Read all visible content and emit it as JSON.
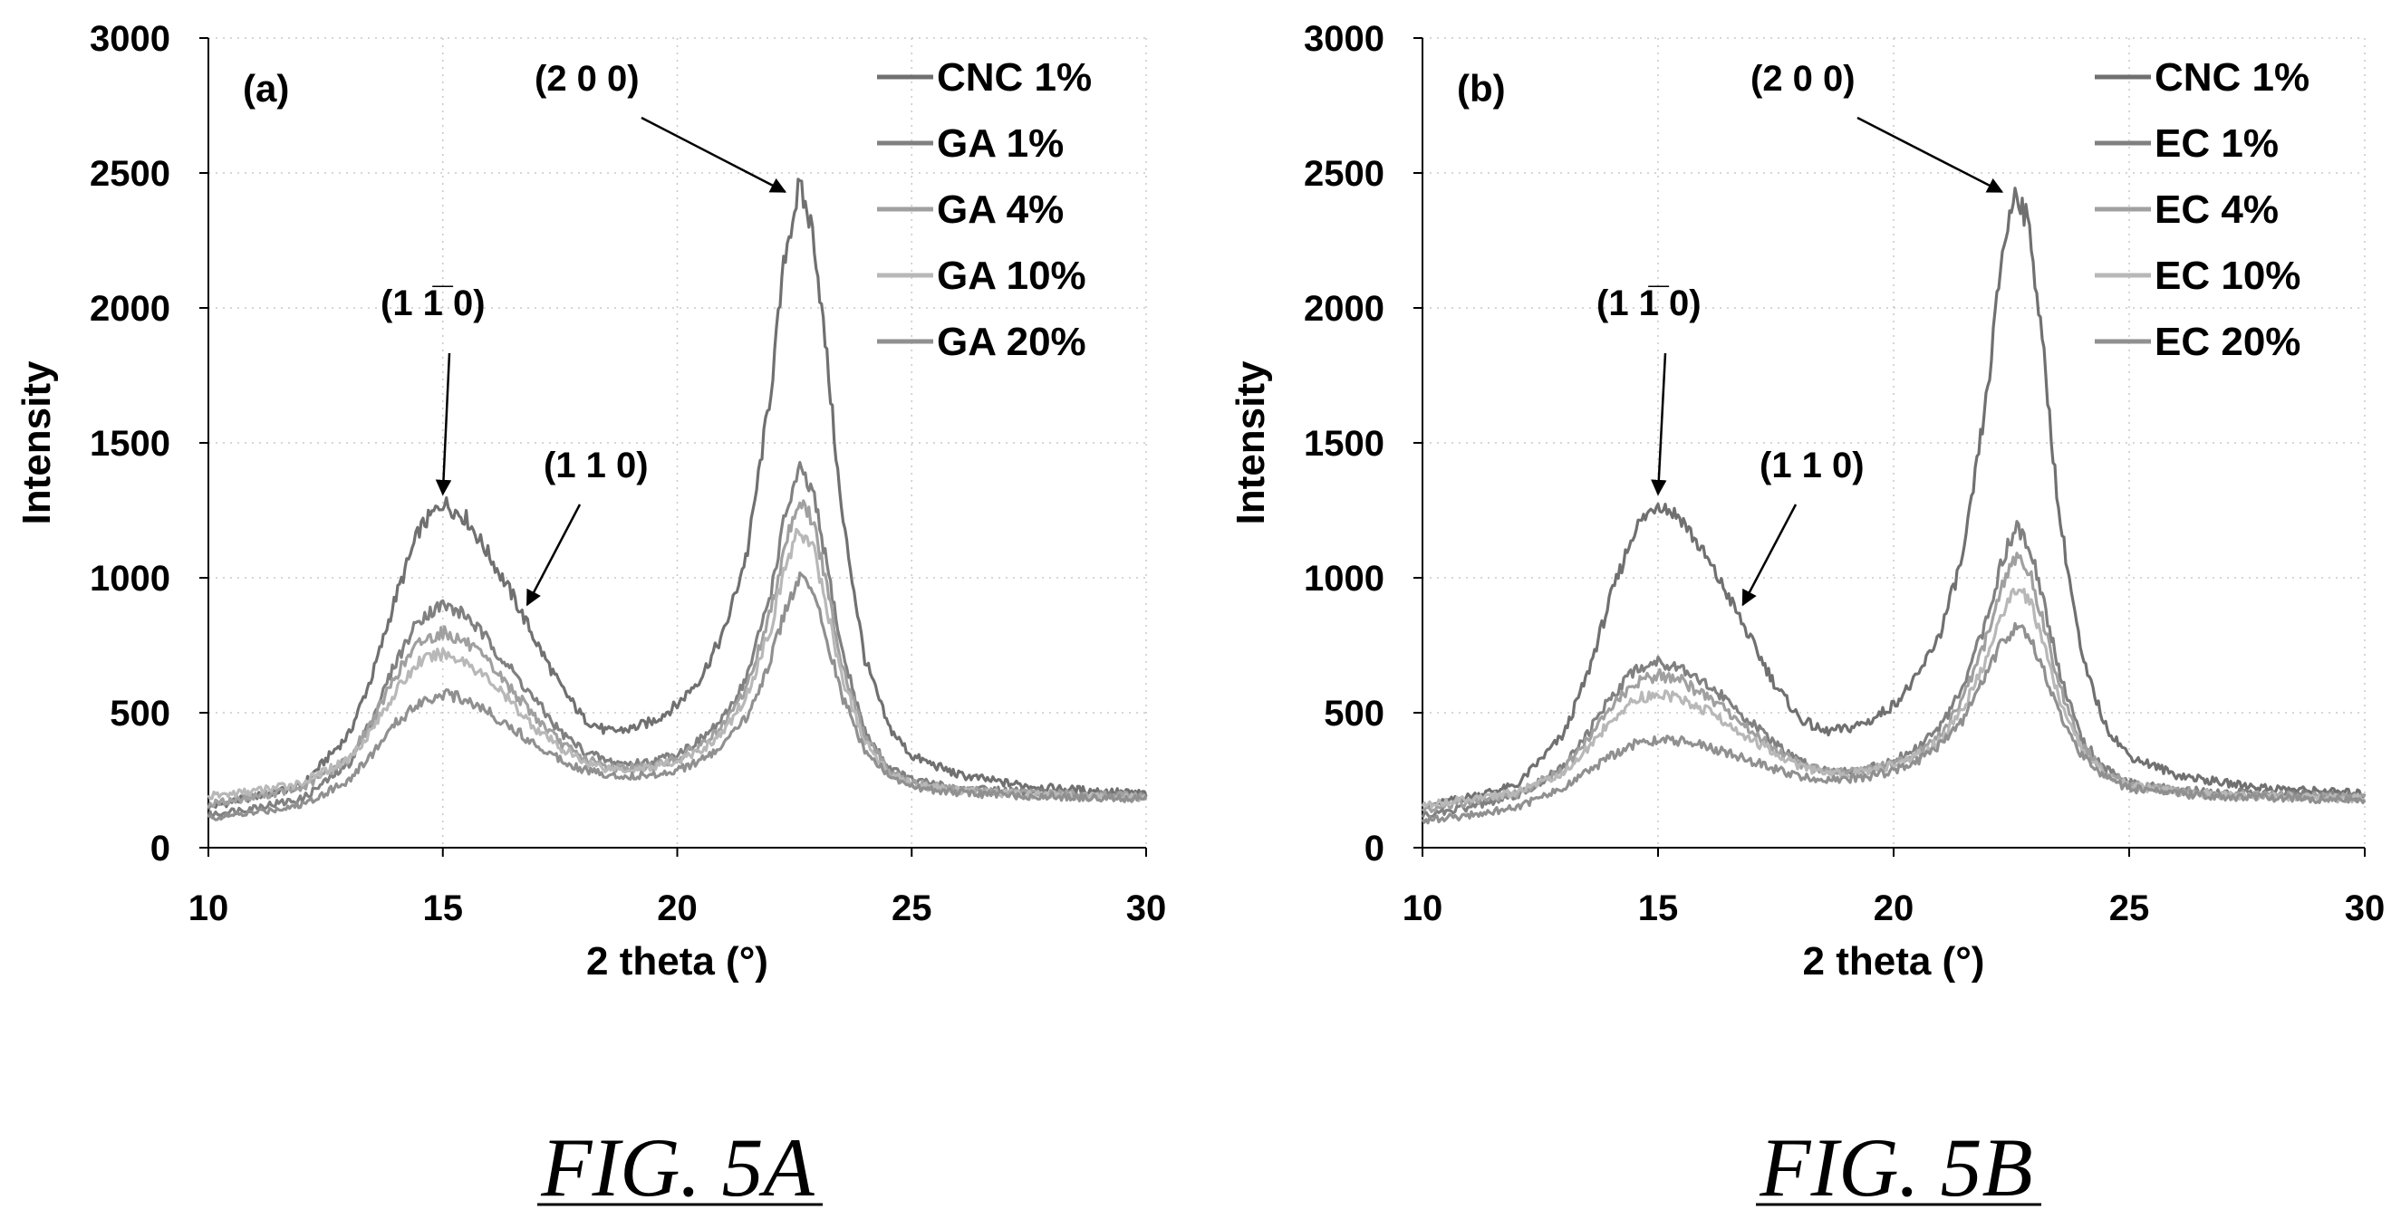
{
  "chart_data": [
    {
      "type": "line",
      "panel_label": "(a)",
      "caption": "FIG. 5A",
      "xlabel": "2 theta (°)",
      "ylabel": "Intensity",
      "xlim": [
        10,
        30
      ],
      "ylim": [
        0,
        3000
      ],
      "xticks": [
        10,
        15,
        20,
        25,
        30
      ],
      "yticks": [
        0,
        500,
        1000,
        1500,
        2000,
        2500,
        3000
      ],
      "grid": true,
      "legend_position": "top-right",
      "x": [
        10,
        11,
        12,
        13,
        13.5,
        14,
        14.5,
        15,
        15.5,
        16,
        16.5,
        17,
        17.5,
        18,
        18.5,
        19,
        19.5,
        20,
        20.5,
        21,
        21.5,
        22,
        22.3,
        22.6,
        22.9,
        23.2,
        23.5,
        24,
        24.5,
        25,
        26,
        27,
        28,
        29,
        30
      ],
      "series": [
        {
          "name": "CNC 1%",
          "color": "#707070",
          "values": [
            150,
            190,
            230,
            420,
            640,
            930,
            1180,
            1280,
            1220,
            1080,
            930,
            760,
            600,
            480,
            430,
            440,
            470,
            530,
            630,
            800,
            1100,
            1700,
            2200,
            2450,
            2280,
            1800,
            1250,
            700,
            450,
            340,
            270,
            240,
            220,
            210,
            200
          ]
        },
        {
          "name": "GA 1%",
          "color": "#808080",
          "values": [
            120,
            150,
            180,
            310,
            480,
            690,
            850,
            900,
            860,
            760,
            650,
            540,
            430,
            360,
            320,
            310,
            320,
            350,
            400,
            480,
            640,
            950,
            1230,
            1400,
            1310,
            1040,
            740,
            430,
            300,
            250,
            220,
            210,
            200,
            195,
            190
          ]
        },
        {
          "name": "GA 4%",
          "color": "#a0a0a0",
          "values": [
            160,
            190,
            220,
            330,
            470,
            640,
            760,
            800,
            760,
            680,
            580,
            480,
            390,
            330,
            300,
            295,
            305,
            330,
            380,
            450,
            600,
            880,
            1130,
            1290,
            1210,
            960,
            690,
            410,
            290,
            240,
            215,
            205,
            200,
            195,
            190
          ]
        },
        {
          "name": "GA 10%",
          "color": "#b8b8b8",
          "values": [
            190,
            210,
            240,
            330,
            440,
            580,
            690,
            720,
            690,
            620,
            530,
            440,
            370,
            320,
            295,
            290,
            300,
            320,
            360,
            430,
            570,
            820,
            1040,
            1180,
            1110,
            880,
            640,
            390,
            280,
            235,
            210,
            200,
            195,
            190,
            185
          ]
        },
        {
          "name": "GA 20%",
          "color": "#909090",
          "values": [
            110,
            130,
            160,
            250,
            350,
            460,
            540,
            570,
            550,
            500,
            440,
            380,
            330,
            290,
            270,
            265,
            270,
            290,
            320,
            380,
            490,
            700,
            880,
            1000,
            950,
            770,
            570,
            360,
            265,
            225,
            205,
            195,
            190,
            185,
            180
          ]
        }
      ],
      "annotations": [
        {
          "text": "(2 0 0)",
          "points_to_x": 22.3,
          "points_to_y": 2430
        },
        {
          "text": "(1 1̅ 0)",
          "points_to_x": 15,
          "points_to_y": 1310
        },
        {
          "text": "(1 1 0)",
          "points_to_x": 16.8,
          "points_to_y": 900
        }
      ]
    },
    {
      "type": "line",
      "panel_label": "(b)",
      "caption": "FIG. 5B",
      "xlabel": "2 theta (°)",
      "ylabel": "Intensity",
      "xlim": [
        10,
        30
      ],
      "ylim": [
        0,
        3000
      ],
      "xticks": [
        10,
        15,
        20,
        25,
        30
      ],
      "yticks": [
        0,
        500,
        1000,
        1500,
        2000,
        2500,
        3000
      ],
      "grid": true,
      "legend_position": "top-right",
      "x": [
        10,
        11,
        12,
        13,
        13.5,
        14,
        14.5,
        15,
        15.5,
        16,
        16.5,
        17,
        17.5,
        18,
        18.5,
        19,
        19.5,
        20,
        20.5,
        21,
        21.5,
        22,
        22.3,
        22.6,
        22.9,
        23.2,
        23.5,
        24,
        24.5,
        25,
        26,
        27,
        28,
        29,
        30
      ],
      "series": [
        {
          "name": "CNC 1%",
          "color": "#707070",
          "values": [
            150,
            190,
            230,
            420,
            640,
            930,
            1180,
            1280,
            1220,
            1080,
            930,
            760,
            600,
            480,
            430,
            440,
            470,
            530,
            630,
            800,
            1100,
            1700,
            2200,
            2450,
            2280,
            1800,
            1250,
            700,
            450,
            340,
            270,
            240,
            220,
            210,
            200
          ]
        },
        {
          "name": "EC 1%",
          "color": "#808080",
          "values": [
            120,
            150,
            190,
            300,
            420,
            560,
            660,
            690,
            670,
            610,
            540,
            460,
            380,
            320,
            290,
            285,
            295,
            320,
            370,
            450,
            600,
            860,
            1060,
            1190,
            1120,
            900,
            660,
            400,
            290,
            240,
            215,
            205,
            200,
            195,
            190
          ]
        },
        {
          "name": "EC 4%",
          "color": "#a0a0a0",
          "values": [
            140,
            170,
            200,
            290,
            400,
            520,
            610,
            640,
            620,
            560,
            500,
            430,
            360,
            310,
            285,
            280,
            290,
            310,
            350,
            420,
            560,
            790,
            960,
            1080,
            1010,
            820,
            610,
            380,
            280,
            235,
            210,
            200,
            195,
            190,
            185
          ]
        },
        {
          "name": "EC 10%",
          "color": "#b8b8b8",
          "values": [
            160,
            180,
            205,
            280,
            370,
            470,
            550,
            570,
            555,
            510,
            460,
            400,
            345,
            300,
            280,
            275,
            285,
            305,
            340,
            400,
            520,
            720,
            870,
            970,
            910,
            750,
            560,
            360,
            270,
            230,
            205,
            195,
            190,
            185,
            180
          ]
        },
        {
          "name": "EC 20%",
          "color": "#909090",
          "values": [
            100,
            120,
            150,
            220,
            280,
            340,
            385,
            400,
            395,
            375,
            350,
            320,
            290,
            265,
            255,
            255,
            265,
            285,
            320,
            380,
            480,
            650,
            760,
            820,
            780,
            650,
            500,
            340,
            260,
            220,
            200,
            190,
            185,
            180,
            175
          ]
        }
      ],
      "annotations": [
        {
          "text": "(2 0 0)",
          "points_to_x": 22.3,
          "points_to_y": 2430
        },
        {
          "text": "(1 1̅ 0)",
          "points_to_x": 15,
          "points_to_y": 1310
        },
        {
          "text": "(1 1 0)",
          "points_to_x": 16.8,
          "points_to_y": 900
        }
      ]
    }
  ]
}
